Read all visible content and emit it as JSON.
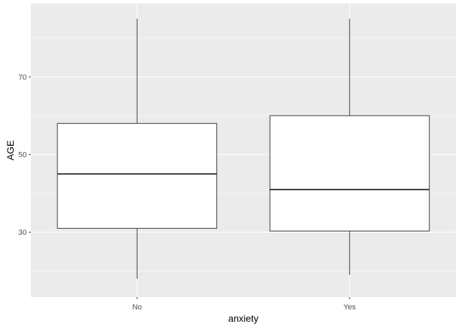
{
  "chart_data": {
    "type": "boxplot",
    "title": "",
    "xlabel": "anxiety",
    "ylabel": "AGE",
    "categories": [
      "No",
      "Yes"
    ],
    "boxes": [
      {
        "category": "No",
        "min": 18,
        "q1": 31,
        "median": 45,
        "q3": 58,
        "max": 85
      },
      {
        "category": "Yes",
        "min": 19,
        "q1": 30.3,
        "median": 41,
        "q3": 60,
        "max": 85
      }
    ],
    "ylim": [
      13.3,
      88.9
    ],
    "y_major_ticks": [
      30,
      50,
      70
    ],
    "y_minor_ticks": [
      20,
      40,
      60,
      80
    ],
    "y_tick_labels": [
      "30",
      "50",
      "70"
    ],
    "grid": true,
    "legend": "none",
    "colors": {
      "panel_background": "#ebebeb",
      "grid_line": "#ffffff",
      "box_fill": "#ffffff",
      "box_stroke": "#333333",
      "axis_text": "#4d4d4d"
    }
  }
}
